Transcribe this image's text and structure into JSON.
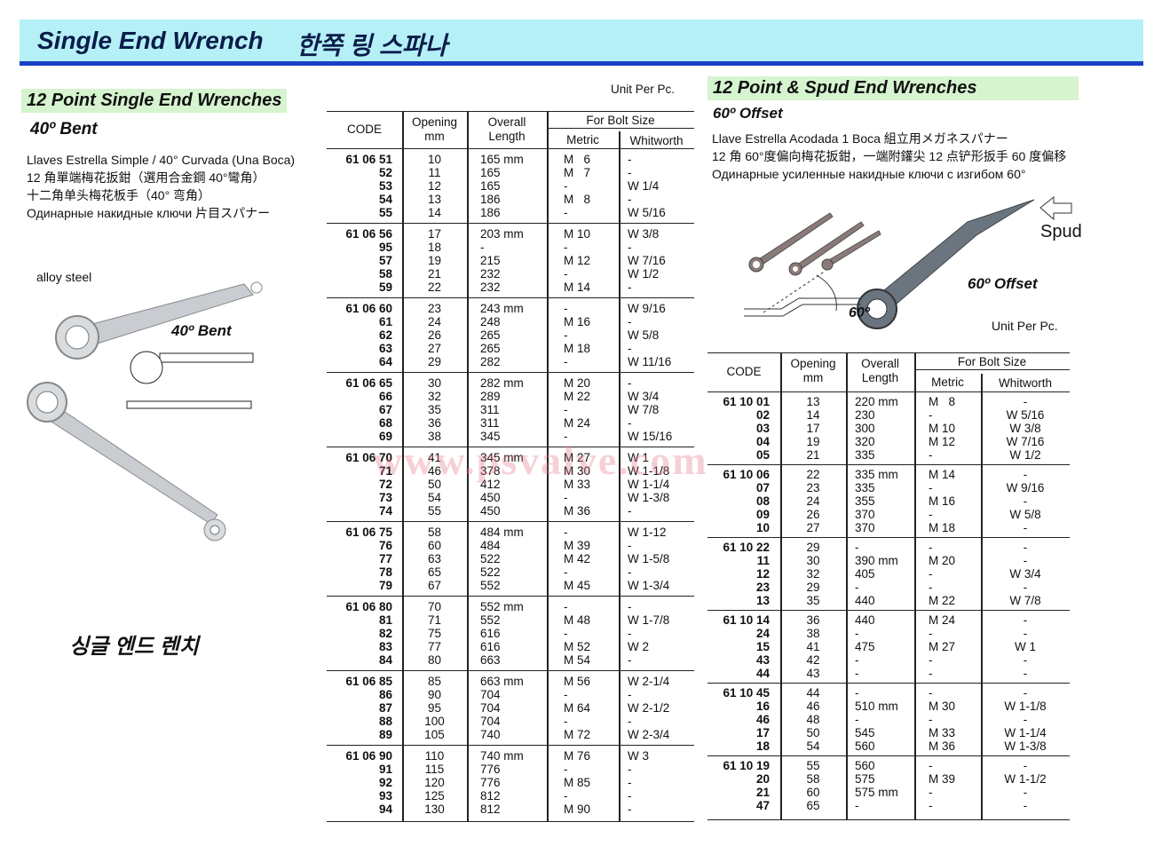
{
  "header": {
    "title_en": "Single End Wrench",
    "title_ko": "한쪽 링 스파나"
  },
  "left": {
    "section_title": "12 Point Single End Wrenches",
    "subtitle": "40º Bent",
    "descriptions": [
      "Llaves Estrella Simple / 40° Curvada (Una Boca)",
      "12 角單端梅花扳鉗（選用合金鋼 40°彎角）",
      "十二角单头梅花板手（40° 弯角）",
      "Одинарные накидные ключи 片目スパナー"
    ],
    "material": "alloy steel",
    "image_label": "40º Bent",
    "korean_name": "싱글 엔드 렌치",
    "unit": "Unit Per Pc.",
    "table": {
      "headers": {
        "code": "CODE",
        "opening": "Opening\nmm",
        "length": "Overall\nLength",
        "bolt": "For Bolt Size",
        "metric": "Metric",
        "whitworth": "Whitworth"
      },
      "groups": [
        [
          [
            "61 06 51",
            "10",
            "165 mm",
            "M   6",
            "-"
          ],
          [
            "52",
            "11",
            "165",
            "M   7",
            "-"
          ],
          [
            "53",
            "12",
            "165",
            "-",
            "W 1/4"
          ],
          [
            "54",
            "13",
            "186",
            "M   8",
            "-"
          ],
          [
            "55",
            "14",
            "186",
            "-",
            "W 5/16"
          ]
        ],
        [
          [
            "61 06 56",
            "17",
            "203 mm",
            "M 10",
            "W 3/8"
          ],
          [
            "95",
            "18",
            "-",
            "-",
            "-"
          ],
          [
            "57",
            "19",
            "215",
            "M 12",
            "W 7/16"
          ],
          [
            "58",
            "21",
            "232",
            "-",
            "W 1/2"
          ],
          [
            "59",
            "22",
            "232",
            "M 14",
            "-"
          ]
        ],
        [
          [
            "61 06 60",
            "23",
            "243 mm",
            "-",
            "W 9/16"
          ],
          [
            "61",
            "24",
            "248",
            "M 16",
            "-"
          ],
          [
            "62",
            "26",
            "265",
            "-",
            "W 5/8"
          ],
          [
            "63",
            "27",
            "265",
            "M 18",
            "-"
          ],
          [
            "64",
            "29",
            "282",
            "-",
            "W 11/16"
          ]
        ],
        [
          [
            "61 06 65",
            "30",
            "282 mm",
            "M 20",
            "-"
          ],
          [
            "66",
            "32",
            "289",
            "M 22",
            "W 3/4"
          ],
          [
            "67",
            "35",
            "311",
            "-",
            "W 7/8"
          ],
          [
            "68",
            "36",
            "311",
            "M 24",
            "-"
          ],
          [
            "69",
            "38",
            "345",
            "-",
            "W 15/16"
          ]
        ],
        [
          [
            "61 06 70",
            "41",
            "345 mm",
            "M 27",
            "W 1"
          ],
          [
            "71",
            "46",
            "378",
            "M 30",
            "W 1-1/8"
          ],
          [
            "72",
            "50",
            "412",
            "M 33",
            "W 1-1/4"
          ],
          [
            "73",
            "54",
            "450",
            "-",
            "W 1-3/8"
          ],
          [
            "74",
            "55",
            "450",
            "M 36",
            "-"
          ]
        ],
        [
          [
            "61 06 75",
            "58",
            "484 mm",
            "-",
            "W 1-12"
          ],
          [
            "76",
            "60",
            "484",
            "M 39",
            "-"
          ],
          [
            "77",
            "63",
            "522",
            "M 42",
            "W 1-5/8"
          ],
          [
            "78",
            "65",
            "522",
            "-",
            "-"
          ],
          [
            "79",
            "67",
            "552",
            "M 45",
            "W 1-3/4"
          ]
        ],
        [
          [
            "61 06 80",
            "70",
            "552 mm",
            "-",
            "-"
          ],
          [
            "81",
            "71",
            "552",
            "M 48",
            "W 1-7/8"
          ],
          [
            "82",
            "75",
            "616",
            "-",
            "-"
          ],
          [
            "83",
            "77",
            "616",
            "M 52",
            "W 2"
          ],
          [
            "84",
            "80",
            "663",
            "M 54",
            "-"
          ]
        ],
        [
          [
            "61 06 85",
            "85",
            "663 mm",
            "M 56",
            "W 2-1/4"
          ],
          [
            "86",
            "90",
            "704",
            "-",
            "-"
          ],
          [
            "87",
            "95",
            "704",
            "M 64",
            "W 2-1/2"
          ],
          [
            "88",
            "100",
            "704",
            "-",
            "-"
          ],
          [
            "89",
            "105",
            "740",
            "M 72",
            "W 2-3/4"
          ]
        ],
        [
          [
            "61 06 90",
            "110",
            "740 mm",
            "M 76",
            "W 3"
          ],
          [
            "91",
            "115",
            "776",
            "-",
            "-"
          ],
          [
            "92",
            "120",
            "776",
            "M 85",
            "-"
          ],
          [
            "93",
            "125",
            "812",
            "-",
            "-"
          ],
          [
            "94",
            "130",
            "812",
            "M 90",
            "-"
          ]
        ]
      ]
    }
  },
  "right": {
    "section_title": "12 Point & Spud End Wrenches",
    "subtitle": "60º Offset",
    "descriptions": [
      "Llave Estrella Acodada 1 Boca  組立用メガネスパナー",
      "12 角 60°度偏向梅花扳鉗，一端附鑵尖 12 点铲形扳手 60 度偏移",
      "Одинарные усиленные накидные ключи с изгибом 60°"
    ],
    "spud_label": "Spud",
    "offset_label": "60º Offset",
    "angle_label": "60º",
    "unit": "Unit Per Pc.",
    "table": {
      "headers": {
        "code": "CODE",
        "opening": "Opening\nmm",
        "length": "Overall\nLength",
        "bolt": "For Bolt Size",
        "metric": "Metric",
        "whitworth": "Whitworth"
      },
      "groups": [
        [
          [
            "61 10 01",
            "13",
            "220 mm",
            "M   8",
            "-"
          ],
          [
            "02",
            "14",
            "230",
            "-",
            "W 5/16"
          ],
          [
            "03",
            "17",
            "300",
            "M 10",
            "W 3/8"
          ],
          [
            "04",
            "19",
            "320",
            "M 12",
            "W 7/16"
          ],
          [
            "05",
            "21",
            "335",
            "-",
            "W 1/2"
          ]
        ],
        [
          [
            "61 10 06",
            "22",
            "335 mm",
            "M 14",
            "-"
          ],
          [
            "07",
            "23",
            "335",
            "-",
            "W 9/16"
          ],
          [
            "08",
            "24",
            "355",
            "M 16",
            "-"
          ],
          [
            "09",
            "26",
            "370",
            "-",
            "W 5/8"
          ],
          [
            "10",
            "27",
            "370",
            "M 18",
            "-"
          ]
        ],
        [
          [
            "61 10 22",
            "29",
            "-",
            "-",
            "-"
          ],
          [
            "11",
            "30",
            "390 mm",
            "M 20",
            "-"
          ],
          [
            "12",
            "32",
            "405",
            "-",
            "W 3/4"
          ],
          [
            "23",
            "29",
            "-",
            "-",
            "-"
          ],
          [
            "13",
            "35",
            "440",
            "M 22",
            "W 7/8"
          ]
        ],
        [
          [
            "61 10 14",
            "36",
            "440",
            "M 24",
            "-"
          ],
          [
            "24",
            "38",
            "-",
            "-",
            "-"
          ],
          [
            "15",
            "41",
            "475",
            "M 27",
            "W 1"
          ],
          [
            "43",
            "42",
            "-",
            "-",
            "-"
          ],
          [
            "44",
            "43",
            "-",
            "-",
            "-"
          ]
        ],
        [
          [
            "61 10 45",
            "44",
            "-",
            "-",
            "-"
          ],
          [
            "16",
            "46",
            "510 mm",
            "M 30",
            "W 1-1/8"
          ],
          [
            "46",
            "48",
            "-",
            "-",
            "-"
          ],
          [
            "17",
            "50",
            "545",
            "M 33",
            "W 1-1/4"
          ],
          [
            "18",
            "54",
            "560",
            "M 36",
            "W 1-3/8"
          ]
        ],
        [
          [
            "61 10 19",
            "55",
            "560",
            "-",
            "-"
          ],
          [
            "20",
            "58",
            "575",
            "M 39",
            "W 1-1/2"
          ],
          [
            "21",
            "60",
            "575 mm",
            "-",
            "-"
          ],
          [
            "47",
            "65",
            "-",
            "-",
            "-"
          ]
        ]
      ]
    }
  },
  "watermark": "www.psvalve.com"
}
